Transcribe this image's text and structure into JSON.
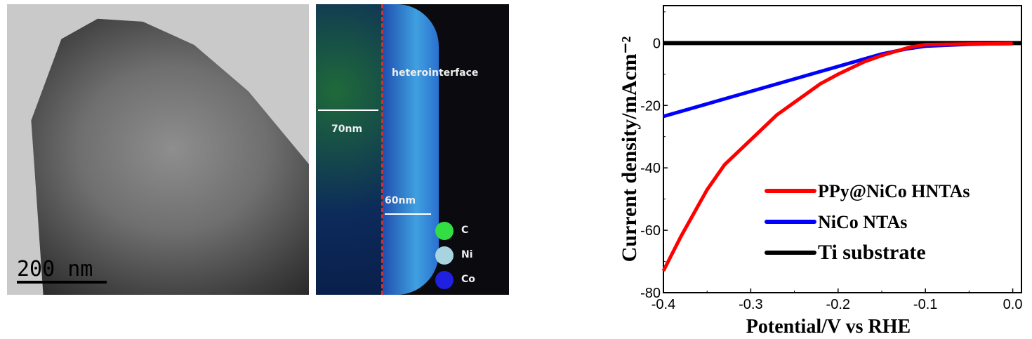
{
  "tem_panel": {
    "scale_bar": "200 nm"
  },
  "map_panel": {
    "annotation": "heterointerface",
    "dim1": "70nm",
    "dim2": "60nm",
    "legend": [
      {
        "label": "C",
        "color": "#33dd44"
      },
      {
        "label": "Ni",
        "color": "#a8d4e0"
      },
      {
        "label": "Co",
        "color": "#2020e0"
      }
    ]
  },
  "chart_data": {
    "type": "line",
    "title": "",
    "xlabel": "Potential/V vs RHE",
    "ylabel": "Current density/mAcm⁻²",
    "xlim": [
      -0.4,
      0.01
    ],
    "ylim": [
      -80,
      12
    ],
    "xticks": [
      "-0.4",
      "-0.3",
      "-0.2",
      "-0.1",
      "0.0"
    ],
    "yticks": [
      "-80",
      "-60",
      "-40",
      "-20",
      "0"
    ],
    "legend_position": "bottom-right",
    "series": [
      {
        "name": "PPy@NiCo HNTAs",
        "color": "#ff0000",
        "x": [
          -0.4,
          -0.38,
          -0.36,
          -0.35,
          -0.33,
          -0.3,
          -0.27,
          -0.25,
          -0.22,
          -0.2,
          -0.17,
          -0.15,
          -0.12,
          -0.1,
          -0.05,
          0.0
        ],
        "y": [
          -73,
          -62,
          -52,
          -47,
          -39,
          -31,
          -23,
          -19,
          -13,
          -10,
          -6,
          -4,
          -1.5,
          -0.5,
          -0.3,
          -0.2
        ]
      },
      {
        "name": "NiCo NTAs",
        "color": "#0000ff",
        "x": [
          -0.4,
          -0.35,
          -0.3,
          -0.25,
          -0.2,
          -0.15,
          -0.12,
          -0.1,
          -0.05,
          0.0
        ],
        "y": [
          -23.5,
          -19.5,
          -15.5,
          -11.5,
          -7.5,
          -3.5,
          -1.8,
          -1,
          -0.4,
          -0.1
        ]
      },
      {
        "name": "Ti substrate",
        "color": "#000000",
        "x": [
          -0.4,
          0.01
        ],
        "y": [
          0,
          0
        ]
      }
    ]
  }
}
